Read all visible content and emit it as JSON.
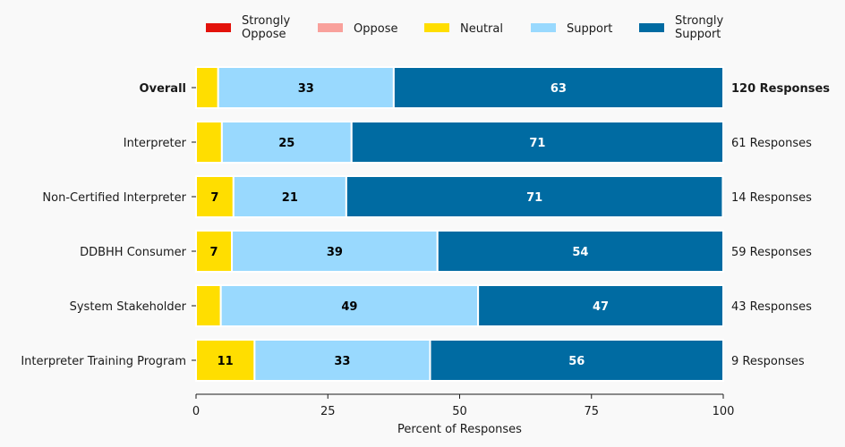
{
  "chart_data": {
    "type": "bar",
    "orientation": "horizontal",
    "stacked": true,
    "title": "",
    "xlabel": "Percent of Responses",
    "ylabel": "",
    "xlim": [
      0,
      100
    ],
    "xticks": [
      0,
      25,
      50,
      75,
      100
    ],
    "grid": false,
    "legend_position": "top",
    "categories": [
      "Overall",
      "Interpreter",
      "Non-Certified Interpreter",
      "DDBHH Consumer",
      "System Stakeholder",
      "Interpreter Training Program"
    ],
    "bold_categories": [
      "Overall"
    ],
    "response_counts": [
      "120 Responses",
      "61 Responses",
      "14 Responses",
      "59 Responses",
      "43 Responses",
      "9 Responses"
    ],
    "series": [
      {
        "name": "Strongly Oppose",
        "legend_label": [
          "Strongly",
          "Oppose"
        ],
        "color": "#e3120b",
        "label_color": "#000000",
        "values": [
          0,
          0,
          0,
          0,
          0,
          0
        ]
      },
      {
        "name": "Oppose",
        "legend_label": [
          "Oppose"
        ],
        "color": "#f9a19c",
        "label_color": "#000000",
        "values": [
          0,
          0,
          0,
          0,
          0,
          0
        ]
      },
      {
        "name": "Neutral",
        "legend_label": [
          "Neutral"
        ],
        "color": "#ffde00",
        "label_color": "#000000",
        "values": [
          4.2,
          4.9,
          7.1,
          6.8,
          4.7,
          11.1
        ]
      },
      {
        "name": "Support",
        "legend_label": [
          "Support"
        ],
        "color": "#99d9fe",
        "label_color": "#000000",
        "values": [
          33.3,
          24.6,
          21.4,
          39.0,
          48.8,
          33.3
        ]
      },
      {
        "name": "Strongly Support",
        "legend_label": [
          "Strongly",
          "Support"
        ],
        "color": "#006ba2",
        "label_color": "#ffffff",
        "values": [
          62.5,
          70.5,
          71.4,
          54.2,
          46.5,
          55.6
        ]
      }
    ],
    "label_threshold": 6
  }
}
